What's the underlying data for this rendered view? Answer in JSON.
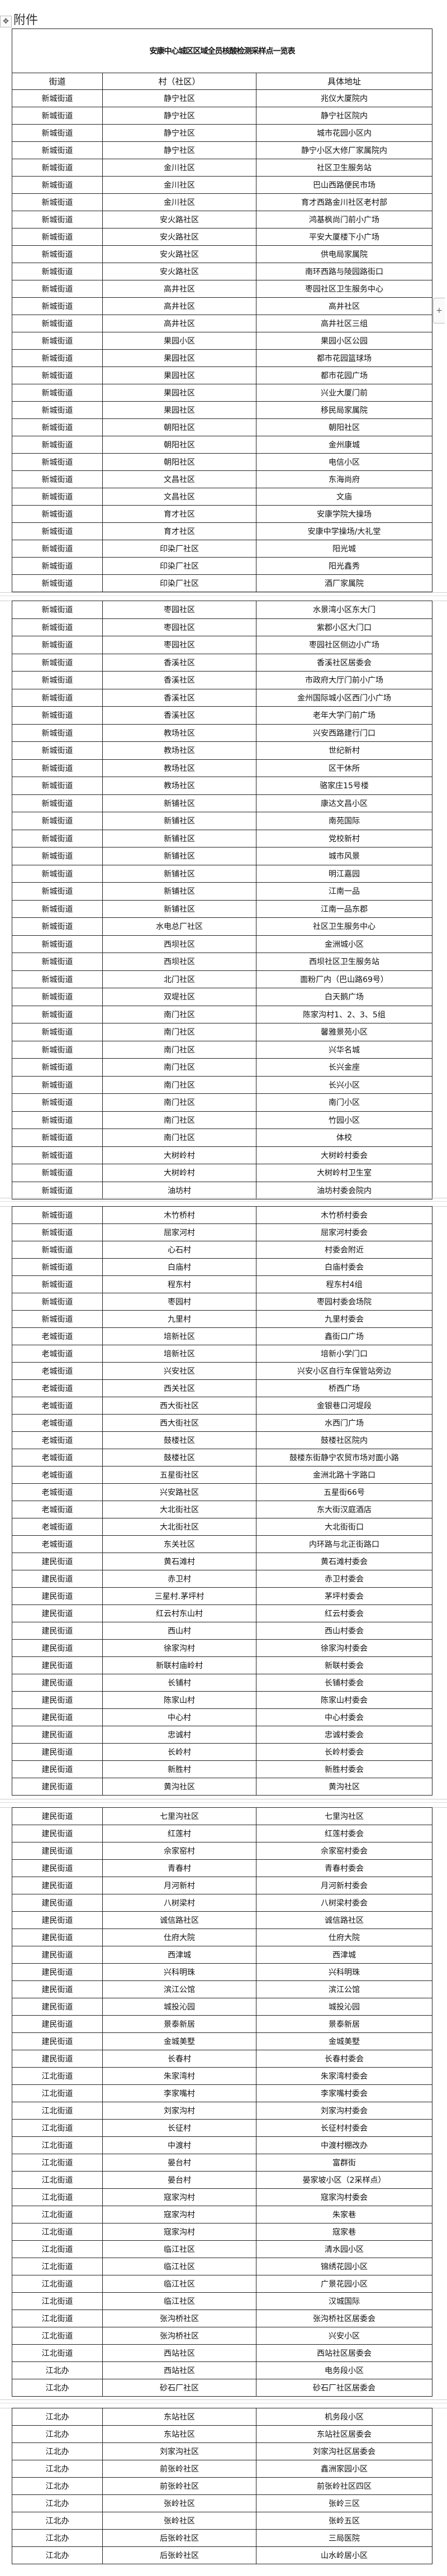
{
  "attachment_label": "附件",
  "title": "安康中心城区区域全员核酸检测采样点一览表",
  "headers": [
    "街道",
    "村（社区）",
    "具体地址"
  ],
  "icons": {
    "move": "move-handle-icon",
    "add": "plus-icon"
  },
  "segments": [
    [
      [
        "新城街道",
        "静宁社区",
        "兆仪大厦院内"
      ],
      [
        "新城街道",
        "静宁社区",
        "静宁社区院内"
      ],
      [
        "新城街道",
        "静宁社区",
        "城市花园小区内"
      ],
      [
        "新城街道",
        "静宁社区",
        "静宁小区大修厂家属院内"
      ],
      [
        "新城街道",
        "金川社区",
        "社区卫生服务站"
      ],
      [
        "新城街道",
        "金川社区",
        "巴山西路便民市场"
      ],
      [
        "新城街道",
        "金川社区",
        "育才西路金川社区老村部"
      ],
      [
        "新城街道",
        "安火路社区",
        "鸿基枫尚门前小广场"
      ],
      [
        "新城街道",
        "安火路社区",
        "平安大厦楼下小广场"
      ],
      [
        "新城街道",
        "安火路社区",
        "供电局家属院"
      ],
      [
        "新城街道",
        "安火路社区",
        "南环西路与陵园路街口"
      ],
      [
        "新城街道",
        "高井社区",
        "枣园社区卫生服务中心"
      ],
      [
        "新城街道",
        "高井社区",
        "高井社区"
      ],
      [
        "新城街道",
        "高井社区",
        "高井社区三组"
      ],
      [
        "新城街道",
        "果园小区",
        "果园小区公园"
      ],
      [
        "新城街道",
        "果园社区",
        "都市花园篮球场"
      ],
      [
        "新城街道",
        "果园社区",
        "都市花园广场"
      ],
      [
        "新城街道",
        "果园社区",
        "兴业大厦门前"
      ],
      [
        "新城街道",
        "果园社区",
        "移民局家属院"
      ],
      [
        "新城街道",
        "朝阳社区",
        "朝阳社区"
      ],
      [
        "新城街道",
        "朝阳社区",
        "金州康城"
      ],
      [
        "新城街道",
        "朝阳社区",
        "电信小区"
      ],
      [
        "新城街道",
        "文昌社区",
        "东海尚府"
      ],
      [
        "新城街道",
        "文昌社区",
        "文庙"
      ],
      [
        "新城街道",
        "育才社区",
        "安康学院大操场"
      ],
      [
        "新城街道",
        "育才社区",
        "安康中学操场/大礼堂"
      ],
      [
        "新城街道",
        "印染厂社区",
        "阳光城"
      ],
      [
        "新城街道",
        "印染厂社区",
        "阳光鑫秀"
      ],
      [
        "新城街道",
        "印染厂社区",
        "酒厂家属院"
      ]
    ],
    [
      [
        "新城街道",
        "枣园社区",
        "水景湾小区东大门"
      ],
      [
        "新城街道",
        "枣园社区",
        "紫郡小区大门口"
      ],
      [
        "新城街道",
        "枣园社区",
        "枣园社区侧边小广场"
      ],
      [
        "新城街道",
        "香溪社区",
        "香溪社区居委会"
      ],
      [
        "新城街道",
        "香溪社区",
        "市政府大厅门前小广场"
      ],
      [
        "新城街道",
        "香溪社区",
        "金州国际城小区西门小广场"
      ],
      [
        "新城街道",
        "香溪社区",
        "老年大学门前广场"
      ],
      [
        "新城街道",
        "教场社区",
        "兴安西路建行门口"
      ],
      [
        "新城街道",
        "教场社区",
        "世纪新村"
      ],
      [
        "新城街道",
        "教场社区",
        "区干休所"
      ],
      [
        "新城街道",
        "教场社区",
        "骆家庄15号楼"
      ],
      [
        "新城街道",
        "新铺社区",
        "康达文昌小区"
      ],
      [
        "新城街道",
        "新铺社区",
        "南苑国际"
      ],
      [
        "新城街道",
        "新铺社区",
        "党校新村"
      ],
      [
        "新城街道",
        "新铺社区",
        "城市风景"
      ],
      [
        "新城街道",
        "新铺社区",
        "明江嘉园"
      ],
      [
        "新城街道",
        "新铺社区",
        "江南一品"
      ],
      [
        "新城街道",
        "新铺社区",
        "江南一品东郡"
      ],
      [
        "新城街道",
        "水电总厂社区",
        "社区卫生服务中心"
      ],
      [
        "新城街道",
        "西坝社区",
        "金洲城小区"
      ],
      [
        "新城街道",
        "西坝社区",
        "西坝社区卫生服务站"
      ],
      [
        "新城街道",
        "北门社区",
        "面粉厂内（巴山路69号）"
      ],
      [
        "新城街道",
        "双堤社区",
        "白天鹅广场"
      ],
      [
        "新城街道",
        "南门社区",
        "陈家沟村1、2、3、5组"
      ],
      [
        "新城街道",
        "南门社区",
        "馨雅景苑小区"
      ],
      [
        "新城街道",
        "南门社区",
        "兴华名城"
      ],
      [
        "新城街道",
        "南门社区",
        "长兴金座"
      ],
      [
        "新城街道",
        "南门社区",
        "长兴小区"
      ],
      [
        "新城街道",
        "南门社区",
        "南门小区"
      ],
      [
        "新城街道",
        "南门社区",
        "竹园小区"
      ],
      [
        "新城街道",
        "南门社区",
        "体校"
      ],
      [
        "新城街道",
        "大树岭村",
        "大树岭村委会"
      ],
      [
        "新城街道",
        "大树岭村",
        "大树岭村卫生室"
      ],
      [
        "新城街道",
        "油坊村",
        "油坊村委会院内"
      ]
    ],
    [
      [
        "新城街道",
        "木竹桥村",
        "木竹桥村委会"
      ],
      [
        "新城街道",
        "屈家河村",
        "屈家河村委会"
      ],
      [
        "新城街道",
        "心石村",
        "村委会附近"
      ],
      [
        "新城街道",
        "白庙村",
        "白庙村委会"
      ],
      [
        "新城街道",
        "程东村",
        "程东村4组"
      ],
      [
        "新城街道",
        "枣园村",
        "枣园村委会场院"
      ],
      [
        "新城街道",
        "九里村",
        "九里村委会"
      ],
      [
        "老城街道",
        "培新社区",
        "鑫街口广场"
      ],
      [
        "老城街道",
        "培新社区",
        "培新小学门口"
      ],
      [
        "老城街道",
        "兴安社区",
        "兴安小区自行车保管站旁边"
      ],
      [
        "老城街道",
        "西关社区",
        "桥西广场"
      ],
      [
        "老城街道",
        "西大街社区",
        "金银巷口河堤段"
      ],
      [
        "老城街道",
        "西大街社区",
        "水西门广场"
      ],
      [
        "老城街道",
        "鼓楼社区",
        "鼓楼社区院内"
      ],
      [
        "老城街道",
        "鼓楼社区",
        "鼓楼东街静宁农贸市场对面小路"
      ],
      [
        "老城街道",
        "五星街社区",
        "金洲北路十字路口"
      ],
      [
        "老城街道",
        "兴安路社区",
        "五星街66号"
      ],
      [
        "老城街道",
        "大北街社区",
        "东大街汉庭酒店"
      ],
      [
        "老城街道",
        "大北街社区",
        "大北街街口"
      ],
      [
        "老城街道",
        "东关社区",
        "内环路与北正街路口"
      ],
      [
        "建民街道",
        "黄石滩村",
        "黄石滩村委会"
      ],
      [
        "建民街道",
        "赤卫村",
        "赤卫村委会"
      ],
      [
        "建民街道",
        "三星村.茅坪村",
        "茅坪村委会"
      ],
      [
        "建民街道",
        "红云村东山村",
        "红云村委会"
      ],
      [
        "建民街道",
        "西山村",
        "西山村委会"
      ],
      [
        "建民街道",
        "徐家沟村",
        "徐家沟村委会"
      ],
      [
        "建民街道",
        "新联村庙岭村",
        "新联村委会"
      ],
      [
        "建民街道",
        "长铺村",
        "长铺村委会"
      ],
      [
        "建民街道",
        "陈家山村",
        "陈家山村委会"
      ],
      [
        "建民街道",
        "中心村",
        "中心村委会"
      ],
      [
        "建民街道",
        "忠诚村",
        "忠诚村委会"
      ],
      [
        "建民街道",
        "长岭村",
        "长岭村委会"
      ],
      [
        "建民街道",
        "新胜村",
        "新胜村委会"
      ],
      [
        "建民街道",
        "黄沟社区",
        "黄沟社区"
      ]
    ],
    [
      [
        "建民街道",
        "七里沟社区",
        "七里沟社区"
      ],
      [
        "建民街道",
        "红莲村",
        "红莲村委会"
      ],
      [
        "建民街道",
        "佘家窑村",
        "佘家窑村委会"
      ],
      [
        "建民街道",
        "青春村",
        "青春村委会"
      ],
      [
        "建民街道",
        "月河新村",
        "月河新村委会"
      ],
      [
        "建民街道",
        "八树梁村",
        "八树梁村委会"
      ],
      [
        "建民街道",
        "诚信路社区",
        "诚信路社区"
      ],
      [
        "建民街道",
        "仕府大院",
        "仕府大院"
      ],
      [
        "建民街道",
        "西津城",
        "西津城"
      ],
      [
        "建民街道",
        "兴科明珠",
        "兴科明珠"
      ],
      [
        "建民街道",
        "滨江公馆",
        "滨江公馆"
      ],
      [
        "建民街道",
        "城投沁园",
        "城投沁园"
      ],
      [
        "建民街道",
        "景泰新居",
        "景泰新居"
      ],
      [
        "建民街道",
        "金城美墅",
        "金城美墅"
      ],
      [
        "建民街道",
        "长春村",
        "长春村委会"
      ],
      [
        "江北街道",
        "朱家湾村",
        "朱家湾村委会"
      ],
      [
        "江北街道",
        "李家嘴村",
        "李家嘴村委会"
      ],
      [
        "江北街道",
        "刘家沟村",
        "刘家沟村委会"
      ],
      [
        "江北街道",
        "长征村",
        "长征村村委会"
      ],
      [
        "江北街道",
        "中渡村",
        "中渡村棚改办"
      ],
      [
        "江北街道",
        "晏台村",
        "富群街"
      ],
      [
        "江北街道",
        "晏台村",
        "晏家坡小区（2采样点）"
      ],
      [
        "江北街道",
        "寇家沟村",
        "寇家沟村委会"
      ],
      [
        "江北街道",
        "寇家沟村",
        "朱家巷"
      ],
      [
        "江北街道",
        "寇家沟村",
        "寇家巷"
      ],
      [
        "江北街道",
        "临江社区",
        "清水园小区"
      ],
      [
        "江北街道",
        "临江社区",
        "锦绣花园小区"
      ],
      [
        "江北街道",
        "临江社区",
        "广景花园小区"
      ],
      [
        "江北街道",
        "临江社区",
        "汉城国际"
      ],
      [
        "江北街道",
        "张沟桥社区",
        "张沟桥社区居委会"
      ],
      [
        "江北街道",
        "张沟桥社区",
        "兴安小区"
      ],
      [
        "江北街道",
        "西站社区",
        "西站社区居委会"
      ],
      [
        "江北办",
        "西站社区",
        "电务段小区"
      ],
      [
        "江北办",
        "砂石厂社区",
        "砂石厂社区居委会"
      ]
    ],
    [
      [
        "江北办",
        "东站社区",
        "机务段小区"
      ],
      [
        "江北办",
        "东站社区",
        "东站社区居委会"
      ],
      [
        "江北办",
        "刘家沟社区",
        "刘家沟社区居委会"
      ],
      [
        "江北办",
        "前张岭社区",
        "鑫洲家园小区"
      ],
      [
        "江北办",
        "前张岭社区",
        "前张岭社区四区"
      ],
      [
        "江北办",
        "张岭社区",
        "张岭三区"
      ],
      [
        "江北办",
        "张岭社区",
        "张岭五区"
      ],
      [
        "江北办",
        "后张岭社区",
        "三局医院"
      ],
      [
        "江北办",
        "后张岭社区",
        "山水岭居小区"
      ]
    ]
  ]
}
